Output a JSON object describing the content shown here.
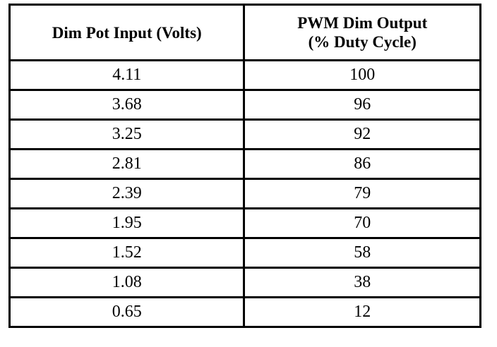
{
  "table": {
    "headers": [
      [
        "Dim Pot Input (Volts)"
      ],
      [
        "PWM Dim Output",
        "(% Duty Cycle)"
      ]
    ],
    "rows": [
      [
        "4.11",
        "100"
      ],
      [
        "3.68",
        "96"
      ],
      [
        "3.25",
        "92"
      ],
      [
        "2.81",
        "86"
      ],
      [
        "2.39",
        "79"
      ],
      [
        "1.95",
        "70"
      ],
      [
        "1.52",
        "58"
      ],
      [
        "1.08",
        "38"
      ],
      [
        "0.65",
        "12"
      ]
    ]
  }
}
